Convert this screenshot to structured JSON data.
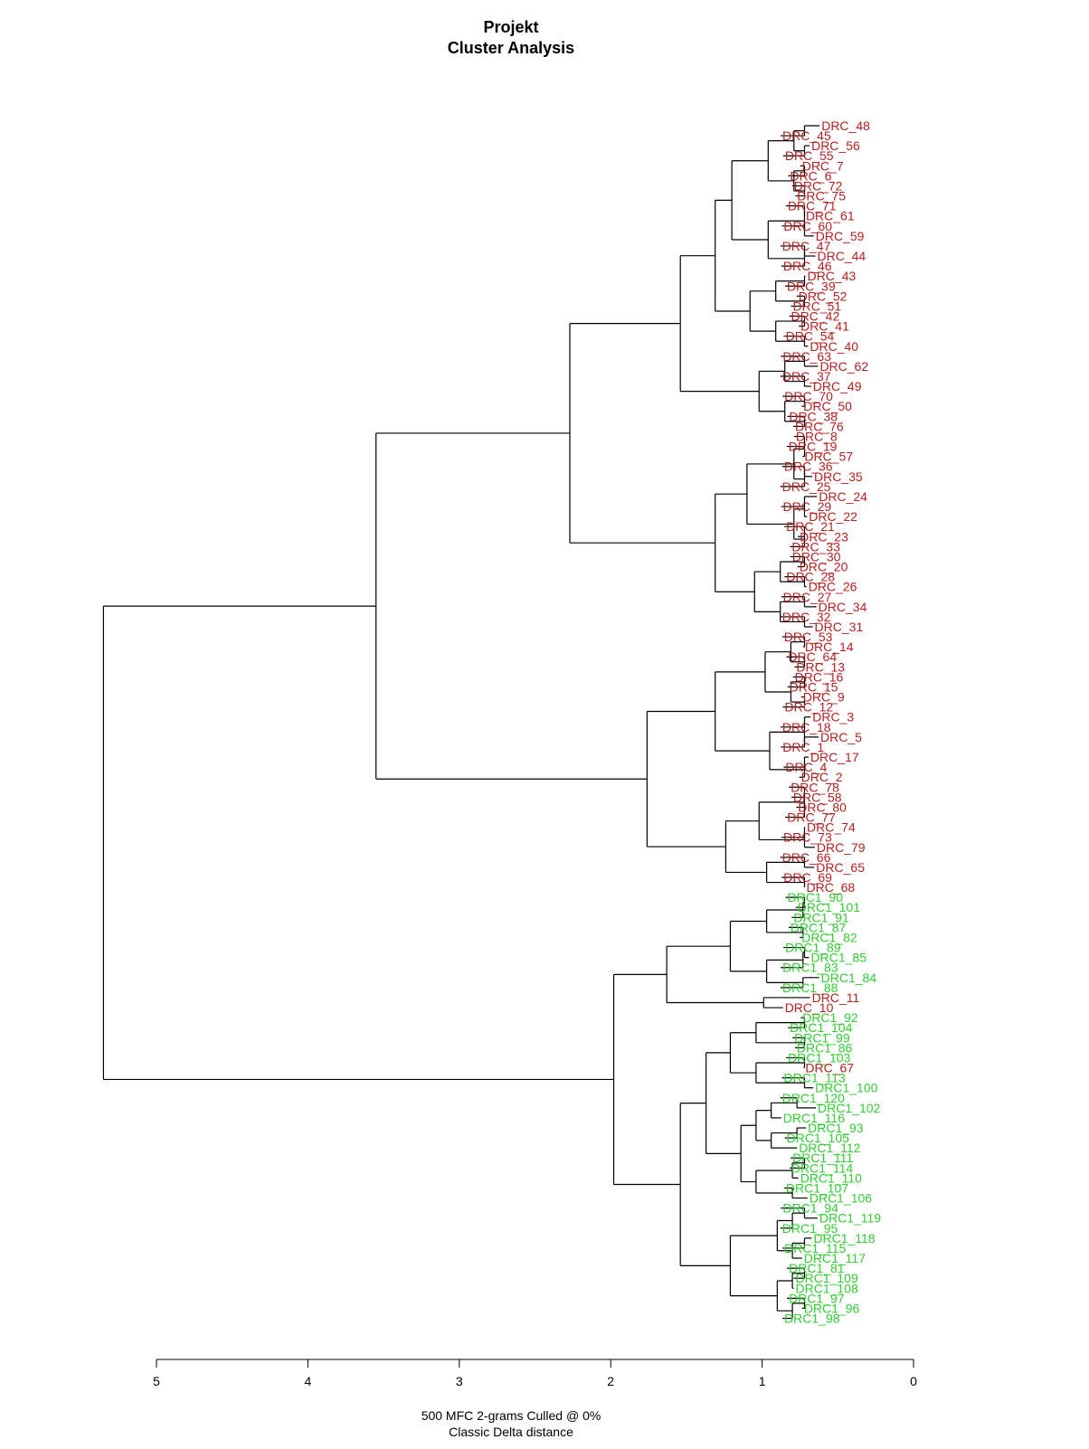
{
  "page": {
    "title_line1": "Projekt",
    "title_line2": "Cluster Analysis",
    "xlabel_line1": "500 MFC 2-grams Culled @ 0%",
    "xlabel_line2": "Classic Delta distance"
  },
  "colors": {
    "red": "#b22222",
    "green": "#33cc33",
    "line": "#000000"
  },
  "chart_data": {
    "type": "dendrogram",
    "orientation": "horizontal",
    "title": "Projekt\nCluster Analysis",
    "xlabel": "500 MFC 2-grams Culled @ 0%\nClassic Delta distance",
    "xlim": [
      5,
      0
    ],
    "x_ticks": [
      5,
      4,
      3,
      2,
      1,
      0
    ],
    "grid": false,
    "legend": "none",
    "leaves": [
      {
        "label": "DRC_48",
        "group": "red"
      },
      {
        "label": "DRC_45",
        "group": "red"
      },
      {
        "label": "DRC_56",
        "group": "red"
      },
      {
        "label": "DRC_55",
        "group": "red"
      },
      {
        "label": "DRC_7",
        "group": "red"
      },
      {
        "label": "DRC_6",
        "group": "red"
      },
      {
        "label": "DRC_72",
        "group": "red"
      },
      {
        "label": "DRC_75",
        "group": "red"
      },
      {
        "label": "DRC_71",
        "group": "red"
      },
      {
        "label": "DRC_61",
        "group": "red"
      },
      {
        "label": "DRC_60",
        "group": "red"
      },
      {
        "label": "DRC_59",
        "group": "red"
      },
      {
        "label": "DRC_47",
        "group": "red"
      },
      {
        "label": "DRC_44",
        "group": "red"
      },
      {
        "label": "DRC_46",
        "group": "red"
      },
      {
        "label": "DRC_43",
        "group": "red"
      },
      {
        "label": "DRC_39",
        "group": "red"
      },
      {
        "label": "DRC_52",
        "group": "red"
      },
      {
        "label": "DRC_51",
        "group": "red"
      },
      {
        "label": "DRC_42",
        "group": "red"
      },
      {
        "label": "DRC_41",
        "group": "red"
      },
      {
        "label": "DRC_54",
        "group": "red"
      },
      {
        "label": "DRC_40",
        "group": "red"
      },
      {
        "label": "DRC_63",
        "group": "red"
      },
      {
        "label": "DRC_62",
        "group": "red"
      },
      {
        "label": "DRC_37",
        "group": "red"
      },
      {
        "label": "DRC_49",
        "group": "red"
      },
      {
        "label": "DRC_70",
        "group": "red"
      },
      {
        "label": "DRC_50",
        "group": "red"
      },
      {
        "label": "DRC_38",
        "group": "red"
      },
      {
        "label": "DRC_76",
        "group": "red"
      },
      {
        "label": "DRC_8",
        "group": "red"
      },
      {
        "label": "DRC_19",
        "group": "red"
      },
      {
        "label": "DRC_57",
        "group": "red"
      },
      {
        "label": "DRC_36",
        "group": "red"
      },
      {
        "label": "DRC_35",
        "group": "red"
      },
      {
        "label": "DRC_25",
        "group": "red"
      },
      {
        "label": "DRC_24",
        "group": "red"
      },
      {
        "label": "DRC_29",
        "group": "red"
      },
      {
        "label": "DRC_22",
        "group": "red"
      },
      {
        "label": "DRC_21",
        "group": "red"
      },
      {
        "label": "DRC_23",
        "group": "red"
      },
      {
        "label": "DRC_33",
        "group": "red"
      },
      {
        "label": "DRC_30",
        "group": "red"
      },
      {
        "label": "DRC_20",
        "group": "red"
      },
      {
        "label": "DRC_28",
        "group": "red"
      },
      {
        "label": "DRC_26",
        "group": "red"
      },
      {
        "label": "DRC_27",
        "group": "red"
      },
      {
        "label": "DRC_34",
        "group": "red"
      },
      {
        "label": "DRC_32",
        "group": "red"
      },
      {
        "label": "DRC_31",
        "group": "red"
      },
      {
        "label": "DRC_53",
        "group": "red"
      },
      {
        "label": "DRC_14",
        "group": "red"
      },
      {
        "label": "DRC_64",
        "group": "red"
      },
      {
        "label": "DRC_13",
        "group": "red"
      },
      {
        "label": "DRC_16",
        "group": "red"
      },
      {
        "label": "DRC_15",
        "group": "red"
      },
      {
        "label": "DRC_9",
        "group": "red"
      },
      {
        "label": "DRC_12",
        "group": "red"
      },
      {
        "label": "DRC_3",
        "group": "red"
      },
      {
        "label": "DRC_18",
        "group": "red"
      },
      {
        "label": "DRC_5",
        "group": "red"
      },
      {
        "label": "DRC_1",
        "group": "red"
      },
      {
        "label": "DRC_17",
        "group": "red"
      },
      {
        "label": "DRC_4",
        "group": "red"
      },
      {
        "label": "DRC_2",
        "group": "red"
      },
      {
        "label": "DRC_78",
        "group": "red"
      },
      {
        "label": "DRC_58",
        "group": "red"
      },
      {
        "label": "DRC_80",
        "group": "red"
      },
      {
        "label": "DRC_77",
        "group": "red"
      },
      {
        "label": "DRC_74",
        "group": "red"
      },
      {
        "label": "DRC_73",
        "group": "red"
      },
      {
        "label": "DRC_79",
        "group": "red"
      },
      {
        "label": "DRC_66",
        "group": "red"
      },
      {
        "label": "DRC_65",
        "group": "red"
      },
      {
        "label": "DRC_69",
        "group": "red"
      },
      {
        "label": "DRC_68",
        "group": "red"
      },
      {
        "label": "DRC1_90",
        "group": "green"
      },
      {
        "label": "DRC1_101",
        "group": "green"
      },
      {
        "label": "DRC1_91",
        "group": "green"
      },
      {
        "label": "DRC1_87",
        "group": "green"
      },
      {
        "label": "DRC1_82",
        "group": "green"
      },
      {
        "label": "DRC1_89",
        "group": "green"
      },
      {
        "label": "DRC1_85",
        "group": "green"
      },
      {
        "label": "DRC1_83",
        "group": "green"
      },
      {
        "label": "DRC1_84",
        "group": "green"
      },
      {
        "label": "DRC1_88",
        "group": "green"
      },
      {
        "label": "DRC_11",
        "group": "red"
      },
      {
        "label": "DRC_10",
        "group": "red"
      },
      {
        "label": "DRC1_92",
        "group": "green"
      },
      {
        "label": "DRC1_104",
        "group": "green"
      },
      {
        "label": "DRC1_99",
        "group": "green"
      },
      {
        "label": "DRC1_86",
        "group": "green"
      },
      {
        "label": "DRC1_103",
        "group": "green"
      },
      {
        "label": "DRC_67",
        "group": "red"
      },
      {
        "label": "DRC1_113",
        "group": "green"
      },
      {
        "label": "DRC1_100",
        "group": "green"
      },
      {
        "label": "DRC1_120",
        "group": "green"
      },
      {
        "label": "DRC1_102",
        "group": "green"
      },
      {
        "label": "DRC1_116",
        "group": "green"
      },
      {
        "label": "DRC1_93",
        "group": "green"
      },
      {
        "label": "DRC1_105",
        "group": "green"
      },
      {
        "label": "DRC1_112",
        "group": "green"
      },
      {
        "label": "DRC1_111",
        "group": "green"
      },
      {
        "label": "DRC1_114",
        "group": "green"
      },
      {
        "label": "DRC1_110",
        "group": "green"
      },
      {
        "label": "DRC1_107",
        "group": "green"
      },
      {
        "label": "DRC1_106",
        "group": "green"
      },
      {
        "label": "DRC1_94",
        "group": "green"
      },
      {
        "label": "DRC1_119",
        "group": "green"
      },
      {
        "label": "DRC1_95",
        "group": "green"
      },
      {
        "label": "DRC1_118",
        "group": "green"
      },
      {
        "label": "DRC1_115",
        "group": "green"
      },
      {
        "label": "DRC1_117",
        "group": "green"
      },
      {
        "label": "DRC1_81",
        "group": "green"
      },
      {
        "label": "DRC1_109",
        "group": "green"
      },
      {
        "label": "DRC1_108",
        "group": "green"
      },
      {
        "label": "DRC1_97",
        "group": "green"
      },
      {
        "label": "DRC1_96",
        "group": "green"
      },
      {
        "label": "DRC1_98",
        "group": "green"
      }
    ],
    "major_merges": [
      {
        "height": 5.35,
        "joins": "red clusters DRC_48..DRC_68 with green clusters DRC1_90..DRC1_98"
      },
      {
        "height": 3.55,
        "joins": "DRC_48..DRC_31 with DRC_53..DRC_68"
      },
      {
        "height": 2.27,
        "joins": "DRC_48..DRC_76 with DRC_8..DRC_31"
      },
      {
        "height": 1.98,
        "joins": "DRC1_90..DRC_10 with DRC1_92..DRC1_98"
      },
      {
        "height": 1.76,
        "joins": "DRC_53..DRC_2 with DRC_78..DRC_68"
      },
      {
        "height": 1.63,
        "joins": "DRC1_90..DRC1_88 with DRC_11, DRC_10"
      },
      {
        "height": 1.54,
        "joins": "DRC_48..DRC_40 with DRC_63..DRC_76"
      },
      {
        "height": 1.54,
        "joins": "DRC1_92..DRC1_106 with DRC1_94..DRC1_98"
      },
      {
        "height": 1.31,
        "joins": "DRC_8..DRC_33 with DRC_30..DRC_31"
      },
      {
        "height": 1.31,
        "joins": "DRC_48..DRC_46 with DRC_43..DRC_40"
      },
      {
        "height": 1.31,
        "joins": "DRC_53..DRC_12 with DRC_3..DRC_2"
      },
      {
        "height": 1.24,
        "joins": "DRC_78..DRC_79 with DRC_66..DRC_68"
      }
    ]
  }
}
